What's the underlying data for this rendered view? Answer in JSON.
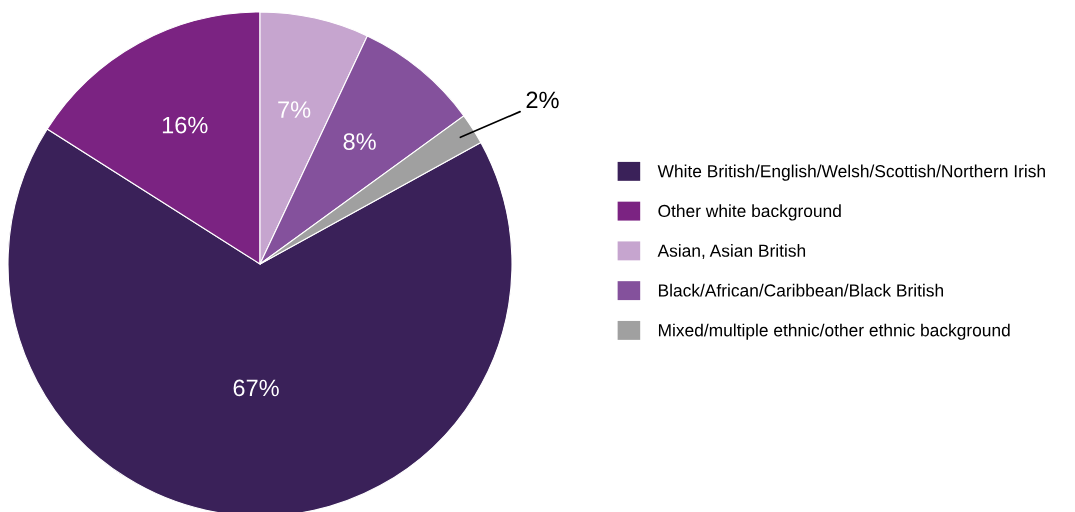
{
  "chart_data": {
    "type": "pie",
    "categories": [
      "White British/English/Welsh/Scottish/Northern Irish",
      "Other white background",
      "Asian, Asian British",
      "Black/African/Caribbean/Black British",
      "Mixed/multiple ethnic/other ethnic background"
    ],
    "values": [
      67,
      16,
      7,
      8,
      2
    ],
    "value_labels": [
      "67%",
      "16%",
      "7%",
      "8%",
      "2%"
    ],
    "colors": [
      "#3a2159",
      "#7b2382",
      "#c6a5cf",
      "#84519c",
      "#a0a0a0"
    ],
    "legend": "right"
  }
}
